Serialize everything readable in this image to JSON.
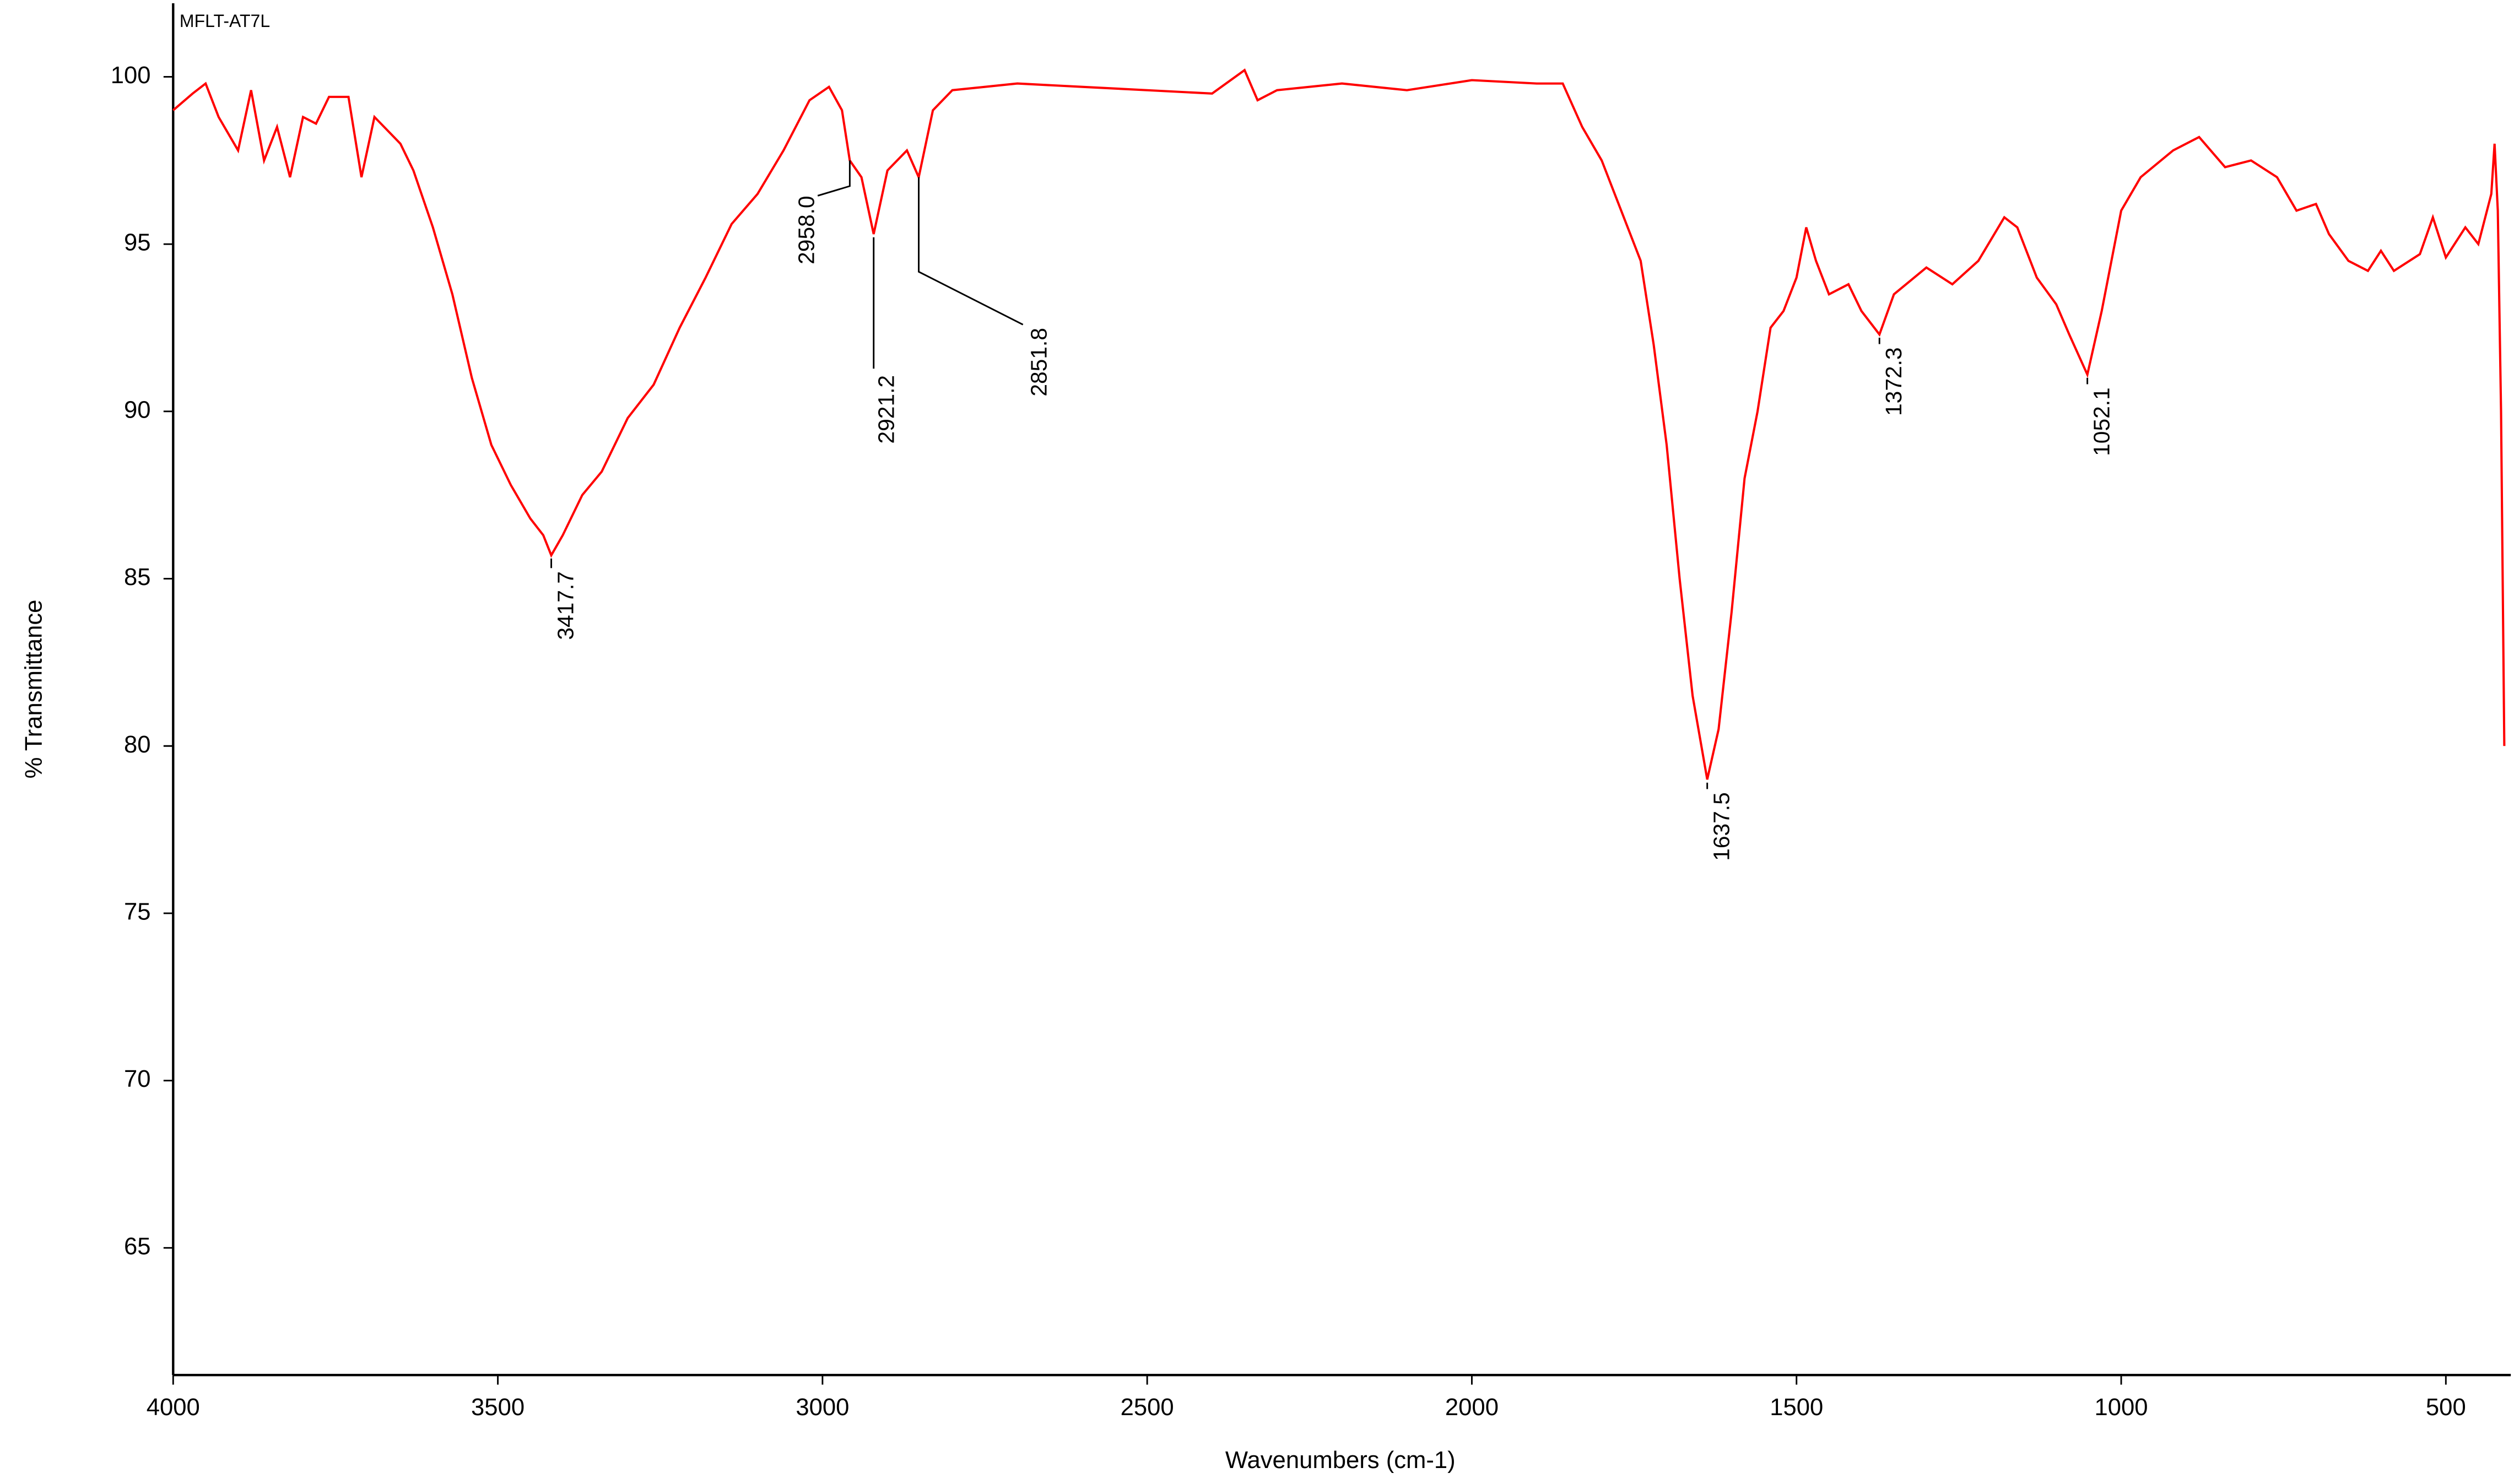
{
  "chart_data": {
    "type": "line",
    "x_label": "Wavenumbers (cm-1)",
    "y_label": "% Transmittance",
    "xlim": [
      4000,
      400
    ],
    "ylim": [
      61.2,
      102.2
    ],
    "xticks": [
      4000,
      3500,
      3000,
      2500,
      2000,
      1500,
      1000,
      500
    ],
    "yticks": [
      65,
      70,
      75,
      80,
      85,
      90,
      95,
      100
    ],
    "grid": false,
    "legend": "top-left",
    "x": [
      4000,
      3970,
      3950,
      3930,
      3900,
      3880,
      3860,
      3840,
      3820,
      3800,
      3780,
      3760,
      3730,
      3710,
      3690,
      3670,
      3650,
      3630,
      3600,
      3570,
      3540,
      3510,
      3480,
      3450,
      3430,
      3417.7,
      3400,
      3370,
      3340,
      3300,
      3260,
      3220,
      3180,
      3140,
      3100,
      3060,
      3020,
      2990,
      2970,
      2958,
      2940,
      2921.2,
      2900,
      2870,
      2851.8,
      2830,
      2800,
      2700,
      2600,
      2500,
      2400,
      2350,
      2330,
      2300,
      2200,
      2100,
      2000,
      1900,
      1860,
      1830,
      1800,
      1770,
      1740,
      1720,
      1700,
      1680,
      1660,
      1637.5,
      1620,
      1600,
      1580,
      1560,
      1540,
      1520,
      1500,
      1485,
      1470,
      1450,
      1420,
      1400,
      1372.3,
      1350,
      1300,
      1260,
      1220,
      1180,
      1160,
      1130,
      1100,
      1080,
      1052.1,
      1030,
      1000,
      970,
      920,
      880,
      840,
      800,
      760,
      730,
      700,
      680,
      650,
      620,
      600,
      580,
      540,
      520,
      500,
      470,
      450,
      430,
      425,
      420,
      415,
      410
    ],
    "series": [
      {
        "name": "MFLT-AT7L",
        "color": "#ff0000",
        "values": [
          99.0,
          99.5,
          99.8,
          98.8,
          97.8,
          99.6,
          97.5,
          98.5,
          97.0,
          98.8,
          98.6,
          99.4,
          99.4,
          97.0,
          98.8,
          98.4,
          98.0,
          97.2,
          95.5,
          93.5,
          91.0,
          89.0,
          87.8,
          86.8,
          86.3,
          85.7,
          86.3,
          87.5,
          88.2,
          89.8,
          90.8,
          92.5,
          94.0,
          95.6,
          96.5,
          97.8,
          99.3,
          99.7,
          99.0,
          97.5,
          97.0,
          95.3,
          97.2,
          97.8,
          97.0,
          99.0,
          99.6,
          99.8,
          99.7,
          99.6,
          99.5,
          100.2,
          99.3,
          99.6,
          99.8,
          99.6,
          99.9,
          99.8,
          99.8,
          98.5,
          97.5,
          96.0,
          94.5,
          92.0,
          89.0,
          85.0,
          81.5,
          79.0,
          80.5,
          84.0,
          88.0,
          90.0,
          92.5,
          93.0,
          94.0,
          95.5,
          94.5,
          93.5,
          93.8,
          93.0,
          92.3,
          93.5,
          94.3,
          93.8,
          94.5,
          95.8,
          95.5,
          94.0,
          93.2,
          92.3,
          91.1,
          93.0,
          96.0,
          97.0,
          97.8,
          98.2,
          97.3,
          97.5,
          97.0,
          96.0,
          96.2,
          95.3,
          94.5,
          94.2,
          94.8,
          94.2,
          94.7,
          95.8,
          94.6,
          95.5,
          95.0,
          96.5,
          98.0,
          96.0,
          90.0,
          80.0
        ]
      }
    ],
    "peaks": [
      3417.7,
      {
        "value": 2958.0,
        "label": "2958.0"
      },
      2921.2,
      2851.8,
      1637.5,
      1372.3,
      1052.1
    ]
  }
}
